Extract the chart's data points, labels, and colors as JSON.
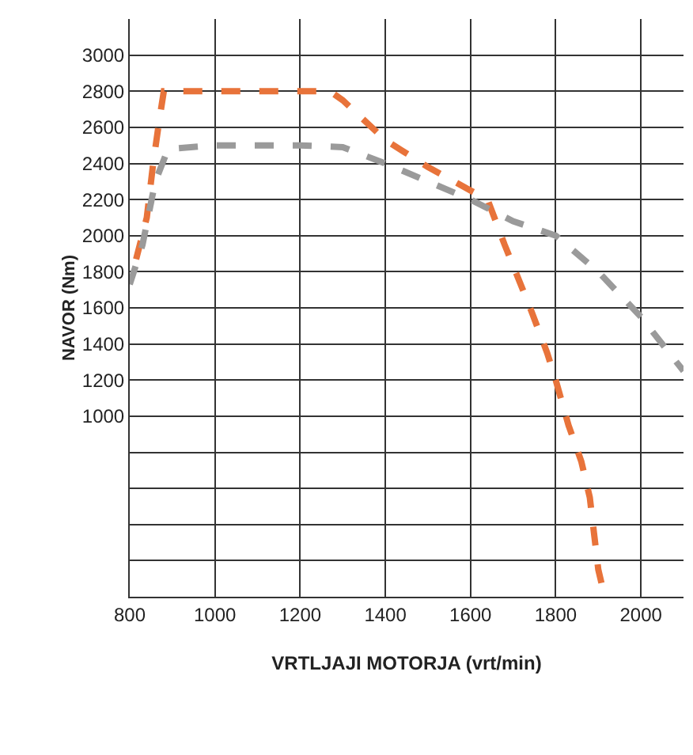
{
  "chart_data": {
    "type": "line",
    "xlabel": "VRTLJAJI MOTORJA (vrt/min)",
    "ylabel": "NAVOR (Nm)",
    "xlim": [
      800,
      2100
    ],
    "xticks": [
      800,
      1000,
      1200,
      1400,
      1600,
      1800,
      2000
    ],
    "ylim": [
      0,
      3200
    ],
    "yticks": [
      {
        "value": 0,
        "label": null
      },
      {
        "value": 200,
        "label": null
      },
      {
        "value": 400,
        "label": null
      },
      {
        "value": 600,
        "label": null
      },
      {
        "value": 800,
        "label": null
      },
      1000,
      1200,
      1400,
      1600,
      1800,
      2000,
      2200,
      2400,
      2600,
      2800,
      3000
    ],
    "grid": true,
    "marker": "none",
    "line_style": "dashed",
    "series": [
      {
        "color": "#e8733a",
        "x": [
          815,
          840,
          855,
          870,
          880,
          1000,
          1100,
          1200,
          1270,
          1300,
          1400,
          1500,
          1600,
          1640,
          1680,
          1740,
          1780,
          1800,
          1830,
          1860,
          1880,
          1890,
          1900,
          1915
        ],
        "values": [
          1870,
          2100,
          2400,
          2650,
          2800,
          2800,
          2800,
          2800,
          2800,
          2750,
          2530,
          2380,
          2250,
          2200,
          1950,
          1600,
          1350,
          1200,
          950,
          750,
          550,
          350,
          150,
          0
        ]
      },
      {
        "color": "#9a9a9a",
        "x": [
          800,
          830,
          860,
          890,
          1000,
          1100,
          1200,
          1300,
          1400,
          1500,
          1600,
          1700,
          1800,
          1900,
          2000,
          2100
        ],
        "values": [
          1730,
          1950,
          2300,
          2480,
          2500,
          2500,
          2500,
          2490,
          2400,
          2300,
          2200,
          2080,
          2000,
          1800,
          1550,
          1250
        ]
      }
    ]
  }
}
